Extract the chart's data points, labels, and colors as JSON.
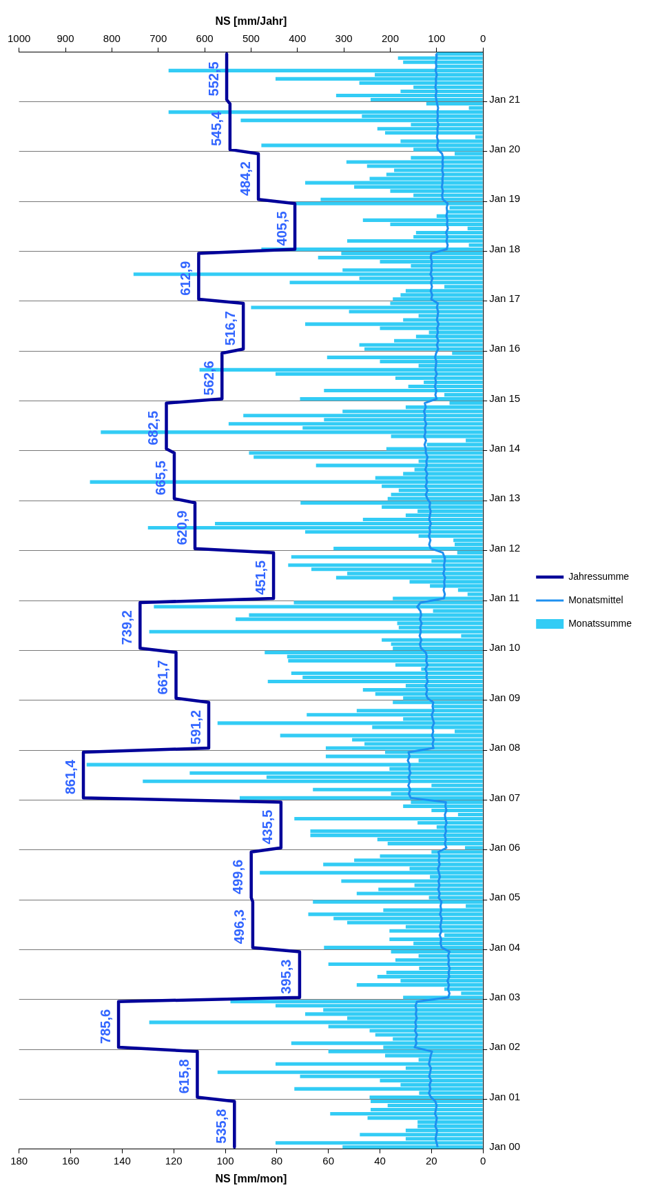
{
  "chart_data": {
    "type": "bar",
    "orientation": "horizontal",
    "xlabel": "NS [mm/mon]",
    "x2label": "NS [mm/Jahr]",
    "categories": [
      null,
      null,
      null,
      null,
      null,
      null,
      null,
      null,
      null,
      null,
      null,
      "Jan 21",
      null,
      null,
      null,
      null,
      null,
      null,
      null,
      null,
      null,
      null,
      null,
      "Jan 20",
      null,
      null,
      null,
      null,
      null,
      null,
      null,
      null,
      null,
      null,
      null,
      "Jan 19",
      null,
      null,
      null,
      null,
      null,
      null,
      null,
      null,
      null,
      null,
      null,
      "Jan 18",
      null,
      null,
      null,
      null,
      null,
      null,
      null,
      null,
      null,
      null,
      null,
      "Jan 17",
      null,
      null,
      null,
      null,
      null,
      null,
      null,
      null,
      null,
      null,
      null,
      "Jan 16",
      null,
      null,
      null,
      null,
      null,
      null,
      null,
      null,
      null,
      null,
      null,
      "Jan 15",
      null,
      null,
      null,
      null,
      null,
      null,
      null,
      null,
      null,
      null,
      null,
      "Jan 14",
      null,
      null,
      null,
      null,
      null,
      null,
      null,
      null,
      null,
      null,
      null,
      "Jan 13",
      null,
      null,
      null,
      null,
      null,
      null,
      null,
      null,
      null,
      null,
      null,
      "Jan 12",
      null,
      null,
      null,
      null,
      null,
      null,
      null,
      null,
      null,
      null,
      null,
      "Jan 11",
      null,
      null,
      null,
      null,
      null,
      null,
      null,
      null,
      null,
      null,
      null,
      "Jan 10",
      null,
      null,
      null,
      null,
      null,
      null,
      null,
      null,
      null,
      null,
      null,
      "Jan 09",
      null,
      null,
      null,
      null,
      null,
      null,
      null,
      null,
      null,
      null,
      null,
      "Jan 08",
      null,
      null,
      null,
      null,
      null,
      null,
      null,
      null,
      null,
      null,
      null,
      "Jan 07",
      null,
      null,
      null,
      null,
      null,
      null,
      null,
      null,
      null,
      null,
      null,
      "Jan 06",
      null,
      null,
      null,
      null,
      null,
      null,
      null,
      null,
      null,
      null,
      null,
      "Jan 05",
      null,
      null,
      null,
      null,
      null,
      null,
      null,
      null,
      null,
      null,
      null,
      "Jan 04",
      null,
      null,
      null,
      null,
      null,
      null,
      null,
      null,
      null,
      null,
      null,
      "Jan 03",
      null,
      null,
      null,
      null,
      null,
      null,
      null,
      null,
      null,
      null,
      null,
      "Jan 02",
      null,
      null,
      null,
      null,
      null,
      null,
      null,
      null,
      null,
      null,
      null,
      "Jan 01",
      null,
      null,
      null,
      null,
      null,
      null,
      null,
      null,
      null,
      null,
      null,
      "Jan 00"
    ],
    "series": [
      {
        "name": "Monatssumme",
        "color": "#33ccf5",
        "values": [
          18,
          33,
          31,
          18,
          122,
          42,
          80.5,
          48,
          27,
          32,
          57,
          43.6,
          22,
          5.5,
          122,
          47,
          94,
          28,
          41,
          38,
          3,
          32,
          86,
          27,
          11,
          28,
          53,
          45,
          34.5,
          37.5,
          44,
          69,
          50,
          36,
          27,
          63,
          72.6,
          13,
          14,
          18,
          46.6,
          36,
          6,
          26,
          27,
          52.7,
          5.5,
          86,
          55,
          64,
          40,
          28,
          54.5,
          135.6,
          48,
          75,
          15,
          30,
          32,
          35,
          36,
          90,
          52,
          25,
          31,
          69,
          40,
          21,
          26,
          34.5,
          48,
          46,
          12,
          60.5,
          40,
          25,
          110,
          80.5,
          34,
          23,
          29,
          61.7,
          15,
          71,
          13,
          30,
          54.5,
          93,
          61.7,
          98.7,
          70,
          148.3,
          35.7,
          6.7,
          21.8,
          37.5,
          90.8,
          89,
          25,
          64.8,
          26.6,
          31,
          41.8,
          152.5,
          39.3,
          32.7,
          35.7,
          37,
          70.8,
          39.3,
          25.4,
          30,
          46.6,
          104,
          130,
          69,
          25,
          11.5,
          11,
          58,
          10,
          74.4,
          20,
          75.6,
          66.6,
          52.7,
          57,
          28.5,
          20.6,
          9.7,
          6,
          35,
          73.4,
          127.7,
          19.4,
          90.8,
          96,
          33.3,
          32.7,
          129.5,
          8.5,
          39.3,
          35.7,
          35,
          84.7,
          76,
          75.6,
          34,
          24,
          74.4,
          70,
          83.5,
          30,
          46.6,
          41.8,
          31,
          35,
          19.4,
          49,
          68.4,
          31,
          103,
          43,
          11,
          78.7,
          50.8,
          46,
          61,
          38,
          61,
          25,
          153.8,
          36.3,
          113.8,
          84,
          132,
          20,
          66,
          35.7,
          94.4,
          28,
          31,
          20,
          9.7,
          73.2,
          25.4,
          18,
          67,
          67,
          41,
          37,
          7,
          20,
          40,
          50,
          62,
          28.5,
          86.6,
          20.6,
          55,
          26.6,
          40.6,
          49,
          21,
          66,
          6.7,
          38.7,
          67.8,
          58,
          52.7,
          30,
          36.3,
          15,
          36.3,
          27,
          61.7,
          35.7,
          25,
          34,
          60,
          24.8,
          37.5,
          41,
          32,
          49,
          15,
          8.5,
          31,
          98,
          80.5,
          62,
          69,
          52.7,
          129.5,
          60,
          44,
          41.8,
          35,
          74.4,
          38.7,
          60,
          38,
          25,
          80.5,
          30,
          103,
          71,
          40,
          32,
          73.2,
          24.8,
          44,
          43.6,
          37,
          43.6,
          59.3,
          44.8,
          25.4,
          25.4,
          30,
          47.8,
          30,
          80.5,
          54.5
        ]
      },
      {
        "name": "Monatsmittel",
        "type": "line",
        "color": "#1e90f0",
        "values": [
          18.2,
          18.0,
          18.3,
          18.1,
          18.4,
          17.9,
          18.3,
          18.2,
          18.5,
          18.0,
          18.4,
          18.1,
          17.8,
          17.4,
          17.7,
          17.5,
          17.8,
          17.3,
          17.7,
          17.6,
          17.9,
          17.4,
          17.8,
          17.5,
          15.9,
          15.5,
          15.8,
          15.6,
          15.9,
          15.4,
          15.8,
          15.7,
          16.0,
          15.5,
          15.9,
          15.6,
          13.7,
          14.1,
          13.9,
          14.2,
          13.8,
          14.0,
          13.6,
          14.3,
          13.8,
          14.2,
          13.7,
          14.1,
          20.0,
          20.3,
          19.8,
          20.1,
          19.9,
          20.4,
          19.6,
          20.2,
          19.8,
          20.3,
          19.7,
          20.1,
          17.5,
          17.9,
          17.4,
          17.6,
          17.9,
          17.2,
          17.8,
          17.5,
          18.0,
          17.3,
          17.9,
          17.4,
          18.2,
          18.6,
          18.1,
          18.3,
          18.5,
          17.9,
          18.6,
          18.2,
          18.7,
          18.1,
          18.5,
          18.0,
          22.6,
          22.2,
          22.9,
          22.4,
          22.7,
          22.0,
          22.6,
          22.3,
          22.8,
          22.1,
          22.7,
          22.2,
          22.2,
          21.5,
          22.0,
          21.8,
          22.4,
          21.6,
          22.1,
          21.7,
          22.3,
          21.5,
          22.2,
          21.6,
          20.5,
          20.8,
          20.3,
          20.6,
          20.9,
          20.2,
          20.8,
          20.5,
          21.0,
          20.4,
          20.9,
          20.3,
          15.6,
          15.0,
          14.8,
          15.2,
          14.9,
          15.4,
          14.7,
          15.1,
          14.9,
          15.3,
          14.8,
          15.2,
          24.2,
          25.5,
          24.3,
          24.0,
          24.5,
          23.8,
          24.4,
          24.1,
          24.6,
          23.9,
          24.5,
          24.0,
          22.2,
          21.8,
          22.1,
          21.5,
          22.4,
          21.7,
          22.0,
          21.4,
          22.3,
          21.6,
          22.1,
          21.5,
          19.3,
          19.6,
          19.2,
          19.9,
          19.5,
          19.0,
          19.7,
          19.3,
          19.8,
          19.1,
          19.6,
          19.2,
          28.9,
          28.5,
          29.2,
          28.4,
          28.7,
          28.1,
          28.9,
          28.3,
          29.0,
          28.2,
          28.8,
          28.0,
          14.4,
          14.6,
          14.2,
          14.8,
          14.6,
          14.1,
          14.7,
          14.3,
          14.9,
          14.4,
          14.8,
          14.2,
          17.3,
          16.9,
          17.2,
          16.8,
          17.5,
          17.1,
          16.7,
          17.3,
          16.9,
          17.4,
          16.8,
          17.2,
          16.1,
          16.5,
          16.2,
          16.7,
          16.0,
          16.3,
          16.6,
          16.1,
          16.8,
          16.2,
          16.5,
          16.0,
          13.0,
          13.6,
          13.2,
          13.5,
          12.9,
          13.4,
          13.1,
          13.8,
          13.2,
          13.6,
          13.0,
          13.5,
          25.6,
          26.2,
          25.8,
          26.1,
          25.7,
          26.3,
          25.9,
          26.4,
          25.6,
          26.2,
          25.8,
          26.5,
          19.8,
          20.3,
          20.6,
          21.0,
          20.2,
          20.5,
          20.9,
          20.1,
          20.8,
          20.4,
          21.0,
          20.2,
          18.5,
          18.0,
          18.3,
          18.6,
          17.9,
          18.2,
          18.5,
          17.8,
          18.1,
          18.4,
          18.0,
          17.6
        ]
      },
      {
        "name": "Jahressumme",
        "type": "line",
        "axis": "x2",
        "color": "#000099",
        "values": [
          552.5,
          552.5,
          552.5,
          552.5,
          552.5,
          552.5,
          552.5,
          552.5,
          552.5,
          552.5,
          552.5,
          552.5,
          545.4,
          545.4,
          545.4,
          545.4,
          545.4,
          545.4,
          545.4,
          545.4,
          545.4,
          545.4,
          545.4,
          545.4,
          484.2,
          484.2,
          484.2,
          484.2,
          484.2,
          484.2,
          484.2,
          484.2,
          484.2,
          484.2,
          484.2,
          484.2,
          405.5,
          405.5,
          405.5,
          405.5,
          405.5,
          405.5,
          405.5,
          405.5,
          405.5,
          405.5,
          405.5,
          405.5,
          612.9,
          612.9,
          612.9,
          612.9,
          612.9,
          612.9,
          612.9,
          612.9,
          612.9,
          612.9,
          612.9,
          612.9,
          516.7,
          516.7,
          516.7,
          516.7,
          516.7,
          516.7,
          516.7,
          516.7,
          516.7,
          516.7,
          516.7,
          516.7,
          562.6,
          562.6,
          562.6,
          562.6,
          562.6,
          562.6,
          562.6,
          562.6,
          562.6,
          562.6,
          562.6,
          562.6,
          682.5,
          682.5,
          682.5,
          682.5,
          682.5,
          682.5,
          682.5,
          682.5,
          682.5,
          682.5,
          682.5,
          682.5,
          665.5,
          665.5,
          665.5,
          665.5,
          665.5,
          665.5,
          665.5,
          665.5,
          665.5,
          665.5,
          665.5,
          665.5,
          620.9,
          620.9,
          620.9,
          620.9,
          620.9,
          620.9,
          620.9,
          620.9,
          620.9,
          620.9,
          620.9,
          620.9,
          451.5,
          451.5,
          451.5,
          451.5,
          451.5,
          451.5,
          451.5,
          451.5,
          451.5,
          451.5,
          451.5,
          451.5,
          739.2,
          739.2,
          739.2,
          739.2,
          739.2,
          739.2,
          739.2,
          739.2,
          739.2,
          739.2,
          739.2,
          739.2,
          661.7,
          661.7,
          661.7,
          661.7,
          661.7,
          661.7,
          661.7,
          661.7,
          661.7,
          661.7,
          661.7,
          661.7,
          591.2,
          591.2,
          591.2,
          591.2,
          591.2,
          591.2,
          591.2,
          591.2,
          591.2,
          591.2,
          591.2,
          591.2,
          861.4,
          861.4,
          861.4,
          861.4,
          861.4,
          861.4,
          861.4,
          861.4,
          861.4,
          861.4,
          861.4,
          861.4,
          435.5,
          435.5,
          435.5,
          435.5,
          435.5,
          435.5,
          435.5,
          435.5,
          435.5,
          435.5,
          435.5,
          435.5,
          499.6,
          499.6,
          499.6,
          499.6,
          499.6,
          499.6,
          499.6,
          499.6,
          499.6,
          499.6,
          499.6,
          499.6,
          496.3,
          496.3,
          496.3,
          496.3,
          496.3,
          496.3,
          496.3,
          496.3,
          496.3,
          496.3,
          496.3,
          496.3,
          395.3,
          395.3,
          395.3,
          395.3,
          395.3,
          395.3,
          395.3,
          395.3,
          395.3,
          395.3,
          395.3,
          395.3,
          785.6,
          785.6,
          785.6,
          785.6,
          785.6,
          785.6,
          785.6,
          785.6,
          785.6,
          785.6,
          785.6,
          785.6,
          615.8,
          615.8,
          615.8,
          615.8,
          615.8,
          615.8,
          615.8,
          615.8,
          615.8,
          615.8,
          615.8,
          615.8,
          535.8,
          535.8,
          535.8,
          535.8,
          535.8,
          535.8,
          535.8,
          535.8,
          535.8,
          535.8,
          535.8,
          535.8
        ],
        "value_labels": [
          null,
          null,
          null,
          null,
          null,
          null,
          "552,5",
          null,
          null,
          null,
          null,
          null,
          null,
          null,
          null,
          null,
          null,
          null,
          "545,4",
          null,
          null,
          null,
          null,
          null,
          null,
          null,
          null,
          null,
          null,
          null,
          "484,2",
          null,
          null,
          null,
          null,
          null,
          null,
          null,
          null,
          null,
          null,
          null,
          "405,5",
          null,
          null,
          null,
          null,
          null,
          null,
          null,
          null,
          null,
          null,
          null,
          "612,9",
          null,
          null,
          null,
          null,
          null,
          null,
          null,
          null,
          null,
          null,
          null,
          "516,7",
          null,
          null,
          null,
          null,
          null,
          null,
          null,
          null,
          null,
          null,
          null,
          "562,6",
          null,
          null,
          null,
          null,
          null,
          null,
          null,
          null,
          null,
          null,
          null,
          "682,5",
          null,
          null,
          null,
          null,
          null,
          null,
          null,
          null,
          null,
          null,
          null,
          "665,5",
          null,
          null,
          null,
          null,
          null,
          null,
          null,
          null,
          null,
          null,
          null,
          "620,9",
          null,
          null,
          null,
          null,
          null,
          null,
          null,
          null,
          null,
          null,
          null,
          "451,5",
          null,
          null,
          null,
          null,
          null,
          null,
          null,
          null,
          null,
          null,
          null,
          "739,2",
          null,
          null,
          null,
          null,
          null,
          null,
          null,
          null,
          null,
          null,
          null,
          "661,7",
          null,
          null,
          null,
          null,
          null,
          null,
          null,
          null,
          null,
          null,
          null,
          "591,2",
          null,
          null,
          null,
          null,
          null,
          null,
          null,
          null,
          null,
          null,
          null,
          "861,4",
          null,
          null,
          null,
          null,
          null,
          null,
          null,
          null,
          null,
          null,
          null,
          "435,5",
          null,
          null,
          null,
          null,
          null,
          null,
          null,
          null,
          null,
          null,
          null,
          "499,6",
          null,
          null,
          null,
          null,
          null,
          null,
          null,
          null,
          null,
          null,
          null,
          "496,3",
          null,
          null,
          null,
          null,
          null,
          null,
          null,
          null,
          null,
          null,
          null,
          "395,3",
          null,
          null,
          null,
          null,
          null,
          null,
          null,
          null,
          null,
          null,
          null,
          "785,6",
          null,
          null,
          null,
          null,
          null,
          null,
          null,
          null,
          null,
          null,
          null,
          "615,8",
          null,
          null,
          null,
          null,
          null,
          null,
          null,
          null,
          null,
          null,
          null,
          "535,8",
          null,
          null,
          null,
          null,
          null
        ]
      }
    ],
    "xlim": [
      180,
      0
    ],
    "xticks": [
      180,
      160,
      140,
      120,
      100,
      80,
      60,
      40,
      20,
      0
    ],
    "x2lim": [
      1000,
      0
    ],
    "x2ticks": [
      1000,
      900,
      800,
      700,
      600,
      500,
      400,
      300,
      200,
      100,
      0
    ],
    "grid": "y",
    "legend": "right"
  }
}
